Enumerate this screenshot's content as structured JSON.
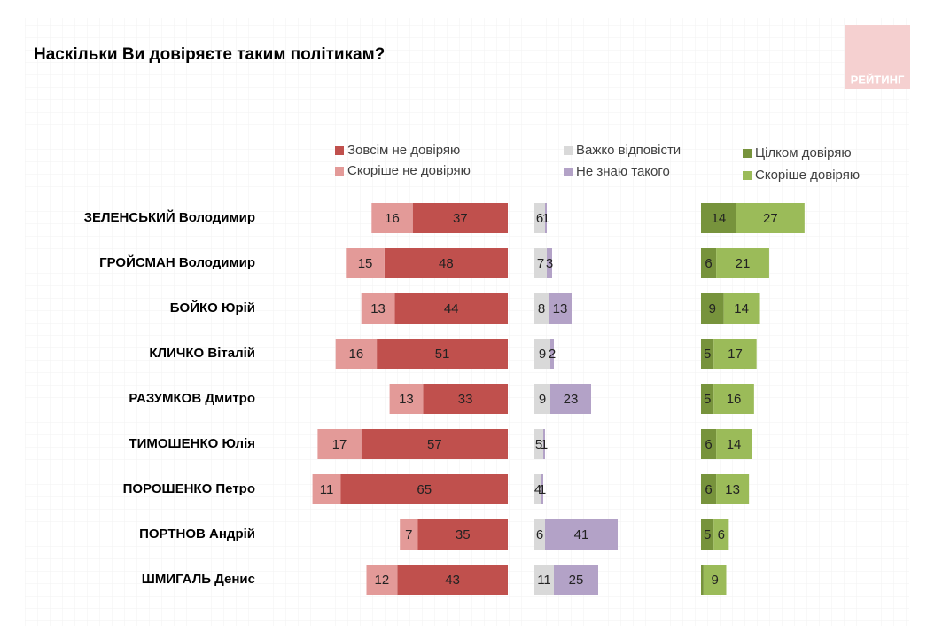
{
  "chart_data": {
    "type": "bar",
    "orientation": "horizontal",
    "stacked": true,
    "title": "Наскільки Ви довіряєте таким політикам?",
    "logo": "РЕЙТИНГ",
    "categories": [
      "ЗЕЛЕНСЬКИЙ Володимир",
      "ГРОЙСМАН Володимир",
      "БОЙКО Юрій",
      "КЛИЧКО Віталій",
      "РАЗУМКОВ Дмитро",
      "ТИМОШЕНКО Юлія",
      "ПОРОШЕНКО Петро",
      "ПОРТНОВ Андрій",
      "ШМИГАЛЬ Денис"
    ],
    "series": [
      {
        "name": "Зовсім не довіряю",
        "color": "#c0504d",
        "values": [
          37,
          48,
          44,
          51,
          33,
          57,
          65,
          35,
          43
        ]
      },
      {
        "name": "Скоріше не довіряю",
        "color": "#e39a98",
        "values": [
          16,
          15,
          13,
          16,
          13,
          17,
          11,
          7,
          12
        ]
      },
      {
        "name": "Важко відповісти",
        "color": "#d9d9d9",
        "values": [
          6,
          7,
          8,
          9,
          9,
          5,
          4,
          6,
          11
        ]
      },
      {
        "name": "Не знаю такого",
        "color": "#b3a2c7",
        "values": [
          1,
          3,
          13,
          2,
          23,
          1,
          1,
          41,
          25
        ]
      },
      {
        "name": "Цілком довіряю",
        "color": "#77933c",
        "values": [
          14,
          6,
          9,
          5,
          5,
          6,
          6,
          5,
          1
        ],
        "value_labels": [
          "14",
          "6",
          "9",
          "5",
          "5",
          "6",
          "6",
          "5",
          null
        ]
      },
      {
        "name": "Скоріше довіряю",
        "color": "#9bbb59",
        "values": [
          27,
          21,
          14,
          17,
          16,
          14,
          13,
          6,
          9
        ]
      }
    ]
  }
}
